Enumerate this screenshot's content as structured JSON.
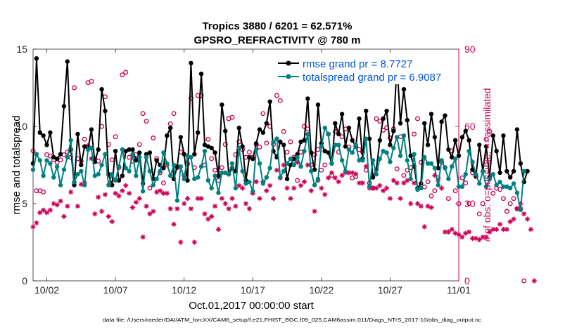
{
  "chart_data": {
    "type": "line",
    "title": "Tropics 3880 / 6201 = 62.571%",
    "subtitle": "GPSRO_REFRACTIVITY @ 780 m",
    "xlabel": "Oct.01,2017 00:00:00 start",
    "ylabel": "rmse and totalspread",
    "ylabel_right": "# of obs: o=possible; ×=assimilated",
    "footer": "data file: /Users/raeder/DAI/ATM_forcXX/CAM6_setup/f.e21.FHIST_BGC.f09_025.CAM6assim.011/Diags_NTrS_2017-10/obs_diag_output.nc",
    "xlim": [
      0,
      31
    ],
    "ylim": [
      0,
      15
    ],
    "ylim_right": [
      0,
      90
    ],
    "x_ticks": [
      {
        "value": 1,
        "label": "10/02"
      },
      {
        "value": 6,
        "label": "10/07"
      },
      {
        "value": 11,
        "label": "10/12"
      },
      {
        "value": 16,
        "label": "10/17"
      },
      {
        "value": 21,
        "label": "10/22"
      },
      {
        "value": 26,
        "label": "10/27"
      },
      {
        "value": 31,
        "label": "11/01"
      }
    ],
    "y_ticks": [
      0,
      5,
      10,
      15
    ],
    "y_ticks_right": [
      0,
      30,
      60,
      90
    ],
    "step": 0.25,
    "legend": {
      "placement": "top-right"
    },
    "series": [
      {
        "name": "rmse grand pr = 8.7727",
        "color": "#000000",
        "values": [
          7.6,
          14.4,
          9.6,
          9.4,
          8.8,
          9.6,
          8,
          7.9,
          8.2,
          11.3,
          14.2,
          8.5,
          6.2,
          9.5,
          7.5,
          8.7,
          8.5,
          9.8,
          7.7,
          8.5,
          12.4,
          11,
          6.9,
          6.2,
          8.4,
          6.5,
          6.8,
          8.4,
          8.5,
          8.5,
          7.8,
          8.3,
          6.3,
          8.2,
          8.3,
          6.6,
          7.8,
          7.5,
          7.3,
          9.4,
          9.9,
          6.6,
          7.4,
          9.3,
          8.2,
          6.5,
          14.1,
          8.2,
          9.6,
          13.4,
          8.8,
          8.7,
          8.6,
          8.3,
          6.8,
          11.4,
          9.7,
          6.9,
          7.3,
          7.1,
          9.9,
          8.7,
          6.5,
          8,
          7.9,
          8.9,
          9.8,
          9.6,
          10.2,
          11.6,
          8.4,
          8,
          9,
          8.8,
          6.6,
          7.5,
          7.9,
          8.2,
          9,
          9.1,
          11.8,
          8.3,
          7.2,
          11.4,
          8.9,
          8.4,
          8.3,
          7.6,
          10.2,
          9.5,
          10.8,
          8.7,
          9.9,
          9.1,
          8.7,
          10.5,
          7.9,
          11,
          9.2,
          6.7,
          7.2,
          9.1,
          10.5,
          11,
          8.8,
          9.7,
          14.1,
          10.2,
          12.4,
          10.4,
          8.1,
          7.4,
          6,
          6.3,
          10.2,
          8.8,
          10.8,
          9.3,
          7.3,
          10.3,
          10.7,
          8.5,
          8,
          9.1,
          8.1,
          9.3,
          9.7,
          9.1,
          7.2,
          6.8,
          8.8,
          7.1,
          8.7,
          6.7,
          9.4,
          8.4,
          7,
          9.4,
          7.1,
          6.7,
          7.1,
          9.8,
          7.6,
          6.4,
          7.1
        ]
      },
      {
        "name": "totalspread grand pr = 6.9087",
        "color": "#008080",
        "values": [
          7.2,
          8.2,
          7.8,
          6.8,
          7.8,
          7.6,
          6.7,
          7.4,
          6.2,
          7.2,
          8,
          9.1,
          6.4,
          6.9,
          7.1,
          6.2,
          8.5,
          8.6,
          6.8,
          6.9,
          7.5,
          8.2,
          6.2,
          6.9,
          6.5,
          7.4,
          8.5,
          7.3,
          7.1,
          8.2,
          6.8,
          8,
          5.8,
          8,
          7.1,
          6.2,
          6.6,
          7.1,
          8.3,
          7.6,
          6.8,
          7.5,
          5.2,
          7.4,
          6.6,
          8.1,
          8,
          6.6,
          6.7,
          7.4,
          8.4,
          6.5,
          6,
          6.8,
          5.7,
          7,
          7,
          6.9,
          7.6,
          6,
          8.6,
          7.1,
          6.3,
          6.4,
          5.8,
          8.5,
          7.6,
          6.3,
          6.7,
          7.3,
          9,
          9.2,
          6.7,
          7.1,
          7.6,
          7.9,
          7.5,
          8,
          7.4,
          8.4,
          9.5,
          7.1,
          6.2,
          6.6,
          8.7,
          9.9,
          9.5,
          7.6,
          8.8,
          8.8,
          7.8,
          7.1,
          8.5,
          8.3,
          8.8,
          7.8,
          7.8,
          9.2,
          6.1,
          7.8,
          6.9,
          7.9,
          8.4,
          8.3,
          7.7,
          8.6,
          9.3,
          8.1,
          9.4,
          7.8,
          6.6,
          8.2,
          5.9,
          6,
          8,
          7.6,
          7.6,
          7.3,
          6.2,
          7.8,
          7.3,
          6.6,
          7.4,
          7.9,
          6.1,
          6.1,
          6.9,
          8.4,
          7.7,
          6.9,
          6.3,
          7.1,
          6.1,
          6.6,
          6.9,
          6.2,
          6.4,
          6.1,
          6.1,
          6,
          6.3,
          5.7,
          4.6,
          7.1
        ]
      }
    ],
    "obs_counts": {
      "possible": {
        "color": "#cc0055",
        "values": [
          50.5,
          35,
          35,
          34.5,
          49,
          48.5,
          47,
          46,
          47,
          49,
          50,
          48,
          75,
          47.5,
          46.5,
          55,
          77,
          77.5,
          47.5,
          46.5,
          60,
          71.5,
          53,
          47,
          56,
          44,
          80,
          81,
          48,
          46.5,
          49,
          53,
          65,
          62,
          36,
          55.5,
          47.5,
          42,
          38,
          45,
          61,
          65,
          44,
          50,
          41,
          45.5,
          71,
          44,
          72,
          72,
          45,
          55,
          47.5,
          43,
          39,
          44,
          53,
          63,
          63.5,
          49,
          54,
          51,
          48,
          50,
          48,
          53,
          52,
          65,
          53.5,
          60,
          53,
          72,
          70,
          58,
          50,
          54,
          48,
          39,
          50,
          60,
          59,
          45,
          49,
          51,
          43,
          45,
          57,
          41,
          58,
          50,
          56,
          59,
          52,
          40,
          40.5,
          51,
          50,
          43,
          38,
          36,
          63,
          62,
          58.5,
          59.5,
          55.5,
          59,
          43.5,
          56,
          41,
          43,
          44,
          57,
          63,
          46,
          36.5,
          38.5,
          33,
          35,
          40,
          46,
          44,
          32,
          50.5,
          35,
          30,
          40,
          38,
          30,
          42,
          40.5,
          26,
          30,
          55,
          58,
          34,
          36,
          35.5,
          32,
          27,
          30,
          32,
          28,
          28,
          0
        ]
      },
      "assimilated": {
        "color": "#cc0055",
        "values": [
          21,
          22.5,
          26.5,
          27.5,
          26.5,
          27.5,
          30,
          29.5,
          31,
          25,
          29,
          34.5,
          38,
          29,
          37.5,
          38,
          52.5,
          47.5,
          26,
          32.5,
          27,
          33.5,
          25,
          23,
          34,
          33,
          35,
          37,
          34,
          28.5,
          30.5,
          32,
          17,
          29,
          26,
          27,
          34.5,
          35,
          34,
          34,
          28,
          22,
          28,
          15,
          30,
          32,
          28,
          15,
          32,
          32,
          26,
          24,
          25,
          29,
          20,
          32,
          30,
          28,
          32,
          29,
          37,
          36,
          30,
          28,
          34,
          38.5,
          32,
          38.5,
          35,
          37,
          32,
          43,
          40,
          45,
          36,
          32,
          36,
          46,
          37,
          38.5,
          45,
          35,
          27,
          39,
          36,
          33.5,
          40,
          42,
          40,
          38.5,
          41,
          42,
          42,
          42,
          41.5,
          38,
          38,
          44.5,
          36,
          36,
          36,
          37,
          35,
          36,
          32,
          39,
          38,
          32,
          38,
          39,
          30,
          38,
          30,
          29,
          21,
          29,
          28.5,
          41,
          39,
          36,
          19,
          19,
          20,
          18.5,
          18,
          17,
          18.5,
          19,
          16.5,
          16.5,
          16,
          17,
          17,
          19,
          20,
          20,
          22,
          20,
          20,
          23,
          24,
          28,
          30,
          26,
          24,
          20,
          0
        ]
      }
    }
  }
}
